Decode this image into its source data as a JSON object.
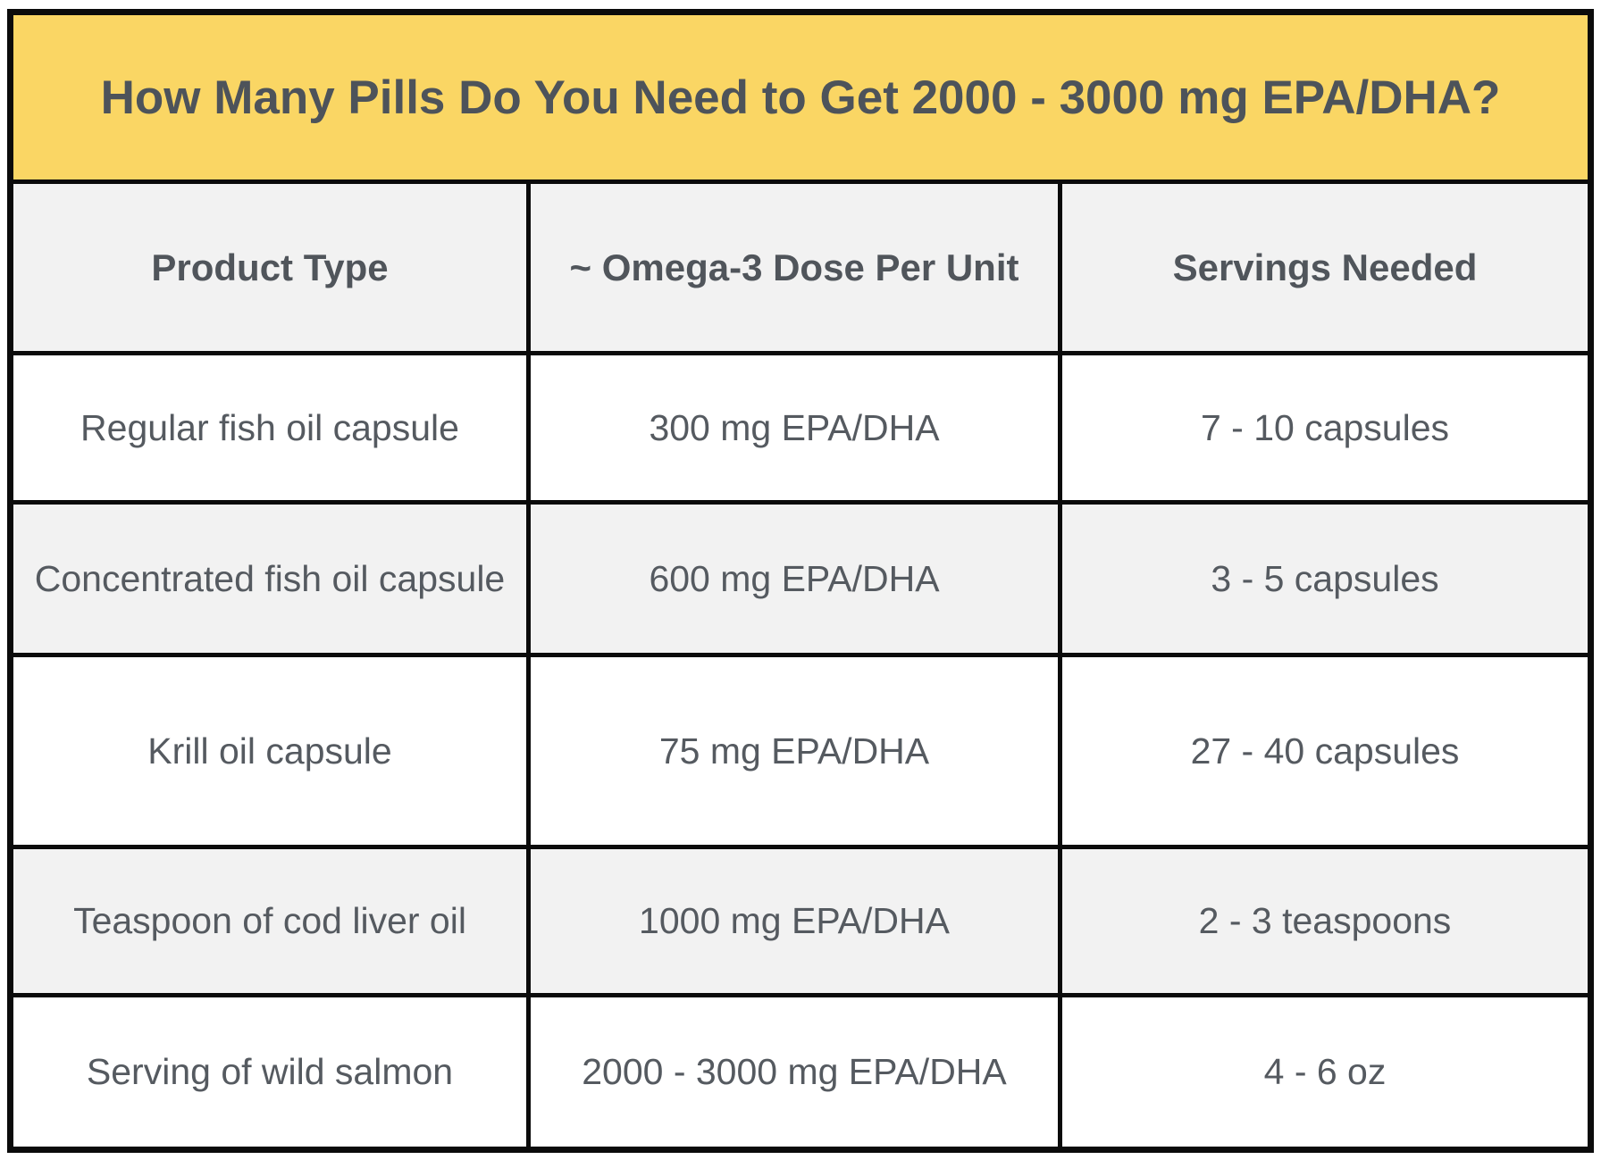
{
  "title": "How Many Pills Do You Need to Get 2000 - 3000 mg EPA/DHA?",
  "colors": {
    "banner_bg": "#FAD664",
    "header_bg": "#F2F2F2",
    "row_alt_bg": "#F2F2F2",
    "row_bg": "#FFFFFF",
    "grid_line": "#0B0B0B",
    "title_text": "#4D535A",
    "body_text": "#555A60"
  },
  "chart_data": {
    "type": "table",
    "title": "How Many Pills Do You Need to Get 2000 - 3000 mg EPA/DHA?",
    "columns": [
      "Product Type",
      "~ Omega-3 Dose Per Unit",
      "Servings Needed"
    ],
    "rows": [
      [
        "Regular fish oil capsule",
        "300 mg EPA/DHA",
        "7 - 10 capsules"
      ],
      [
        "Concentrated fish oil capsule",
        "600 mg EPA/DHA",
        "3 - 5 capsules"
      ],
      [
        "Krill oil capsule",
        "75 mg EPA/DHA",
        "27 - 40 capsules"
      ],
      [
        "Teaspoon of cod liver oil",
        "1000 mg EPA/DHA",
        "2 - 3 teaspoons"
      ],
      [
        "Serving of wild salmon",
        "2000 - 3000 mg EPA/DHA",
        "4 - 6 oz"
      ]
    ]
  }
}
